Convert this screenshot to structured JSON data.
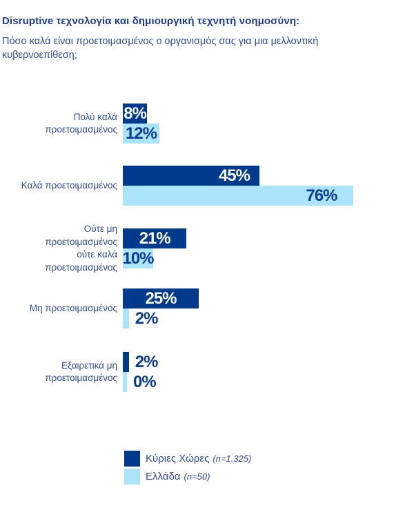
{
  "header": {
    "title": "Disruptive τεχνολογία και δημιουργική τεχνητή νοημοσύνη:",
    "subtitle": "Πόσο καλά είναι προετοιμασμένος ο οργανισμός σας για μια μελλοντική κυβερνοεπίθεση;"
  },
  "colors": {
    "bar_dark": "#003A8D",
    "bar_light": "#ACE4FB",
    "title_text": "#1E3D99",
    "body_text": "#2E4BA0",
    "value_on_dark": "#FFFFFF",
    "value_on_light": "#0B3D91"
  },
  "chart_data": {
    "type": "bar",
    "orientation": "horizontal",
    "value_suffix": "%",
    "xlim": [
      0,
      100
    ],
    "grid": false,
    "legend_position": "bottom",
    "categories": [
      [
        "Πολύ καλά",
        "προετοιμασμένος"
      ],
      [
        "Καλά προετοιμασμένος"
      ],
      [
        "Ούτε μη",
        "προετοιμασμένος",
        "ούτε καλά",
        "προετοιμασμένος"
      ],
      [
        "Μη προετοιμασμένος"
      ],
      [
        "Εξαιρετικά μη",
        "προετοιμασμένος"
      ]
    ],
    "series": [
      {
        "name": "Κύριες Χώρες",
        "sample": "(n=1.325)",
        "color": "#003A8D",
        "values": [
          8,
          45,
          21,
          25,
          2
        ],
        "display_values": [
          "8%",
          "45%",
          "21%",
          "25%",
          "2%"
        ]
      },
      {
        "name": "Ελλάδα",
        "sample": "(n=50)",
        "color": "#ACE4FB",
        "values": [
          12,
          76,
          10,
          2,
          0
        ],
        "display_values": [
          "12%",
          "76%",
          "10%",
          "2%",
          "0%"
        ]
      }
    ]
  },
  "legend": {
    "items": [
      {
        "label": "Κύριες Χώρες",
        "sample": "(n=1.325)",
        "color": "#003A8D"
      },
      {
        "label": "Ελλάδα",
        "sample": "(n=50)",
        "color": "#ACE4FB"
      }
    ]
  }
}
